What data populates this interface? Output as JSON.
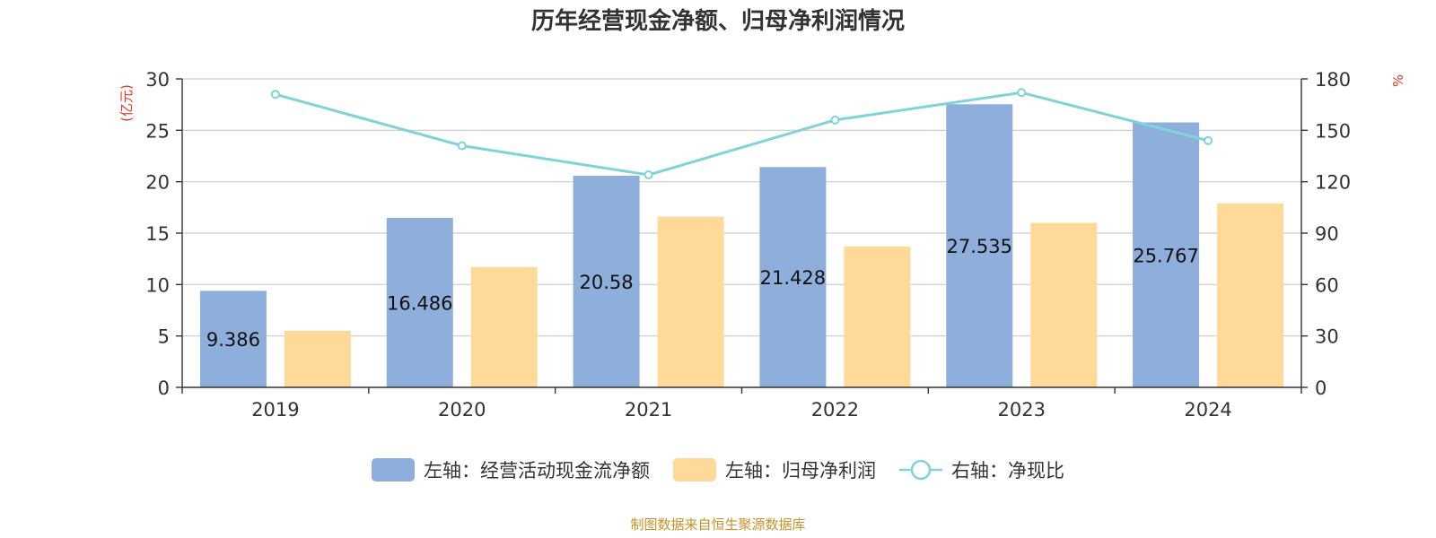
{
  "chart_data": {
    "type": "bar",
    "title": "历年经营现金净额、归母净利润情况",
    "categories": [
      "2019",
      "2020",
      "2021",
      "2022",
      "2023",
      "2024"
    ],
    "left_axis": {
      "unit": "(亿元)",
      "ylim": [
        0,
        30
      ],
      "ticks": [
        "0",
        "5",
        "10",
        "15",
        "20",
        "25",
        "30"
      ]
    },
    "right_axis": {
      "unit": "%",
      "ylim": [
        0,
        180
      ],
      "ticks": [
        "0",
        "30",
        "60",
        "90",
        "120",
        "150",
        "180"
      ]
    },
    "series": [
      {
        "name": "左轴：经营活动现金流净额",
        "type": "bar",
        "axis": "left",
        "color": "#8eaedb",
        "values": [
          9.386,
          16.486,
          20.58,
          21.428,
          27.535,
          25.767
        ],
        "labels": [
          "9.386",
          "16.486",
          "20.58",
          "21.428",
          "27.535",
          "25.767"
        ]
      },
      {
        "name": "左轴：归母净利润",
        "type": "bar",
        "axis": "left",
        "color": "#ffd998",
        "values": [
          5.5,
          11.7,
          16.6,
          13.7,
          16.0,
          17.9
        ]
      },
      {
        "name": "右轴：净现比",
        "type": "line",
        "axis": "right",
        "color": "#7fd3d9",
        "values": [
          171,
          141,
          124,
          156,
          172,
          144
        ]
      }
    ],
    "grid": true,
    "legend_position": "bottom-center",
    "source": "制图数据来自恒生聚源数据库"
  },
  "colors": {
    "title": "#333333",
    "axis_unit": "#e8332a",
    "grid": "#cccccc",
    "axis_line": "#333333",
    "source": "#c8922a"
  }
}
